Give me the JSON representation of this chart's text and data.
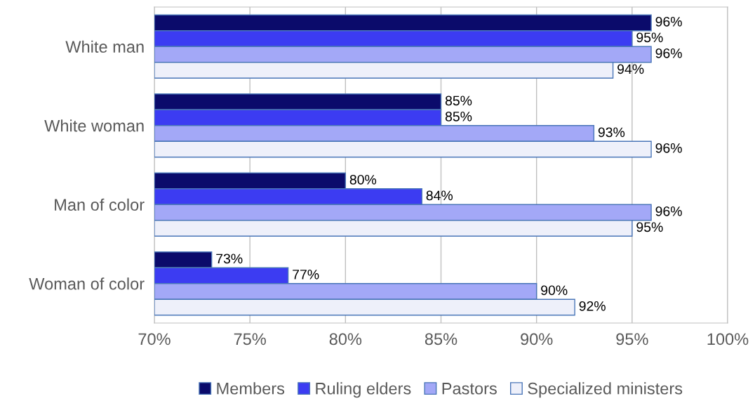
{
  "chart_data": {
    "type": "bar",
    "orientation": "horizontal",
    "categories": [
      "White man",
      "White woman",
      "Man of color",
      "Woman of color"
    ],
    "series": [
      {
        "name": "Members",
        "color": "#0b0b6b",
        "values": [
          96,
          85,
          80,
          73
        ],
        "value_labels": [
          "96%",
          "85%",
          "80%",
          "73%"
        ]
      },
      {
        "name": "Ruling elders",
        "color": "#3c3cf2",
        "values": [
          95,
          85,
          84,
          77
        ],
        "value_labels": [
          "95%",
          "85%",
          "84%",
          "77%"
        ]
      },
      {
        "name": "Pastors",
        "color": "#a3a8f7",
        "values": [
          96,
          93,
          96,
          90
        ],
        "value_labels": [
          "96%",
          "93%",
          "96%",
          "90%"
        ]
      },
      {
        "name": "Specialized ministers",
        "color": "#eef0fa",
        "values": [
          94,
          96,
          95,
          92
        ],
        "value_labels": [
          "94%",
          "96%",
          "95%",
          "92%"
        ]
      }
    ],
    "xlim": [
      70,
      100
    ],
    "xticks": [
      {
        "value": 70,
        "label": "70%"
      },
      {
        "value": 75,
        "label": "75%"
      },
      {
        "value": 80,
        "label": "80%"
      },
      {
        "value": 85,
        "label": "85%"
      },
      {
        "value": 90,
        "label": "90%"
      },
      {
        "value": 95,
        "label": "95%"
      },
      {
        "value": 100,
        "label": "100%"
      }
    ],
    "grid": "x",
    "legend": "bottom"
  }
}
